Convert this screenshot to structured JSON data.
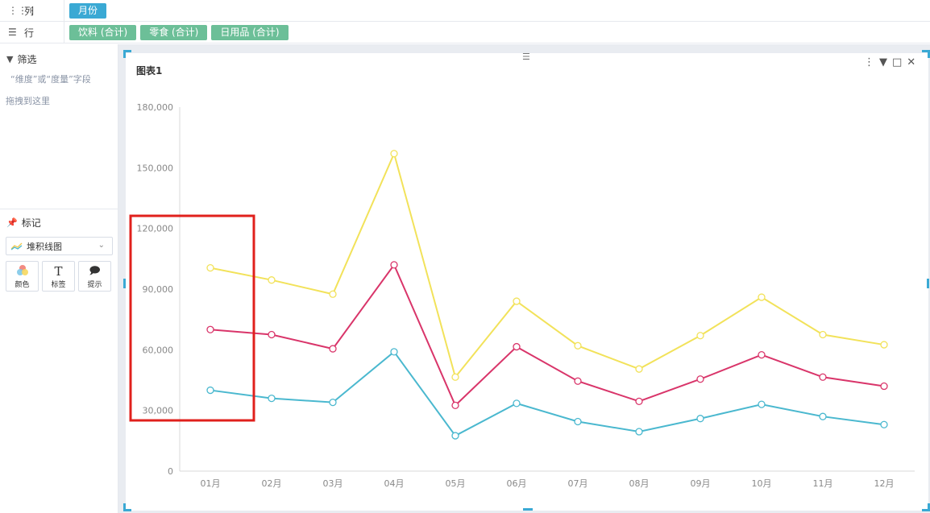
{
  "shelves": {
    "columns": {
      "label": "列",
      "icon": "columns-icon",
      "pills": [
        "月份"
      ]
    },
    "rows": {
      "label": "行",
      "icon": "rows-list-icon",
      "pills": [
        "饮料 (合计)",
        "零食 (合计)",
        "日用品 (合计)"
      ]
    }
  },
  "filter": {
    "title": "筛选",
    "hint_line1": "“维度”或“度量”字段",
    "hint_line2": "拖拽到这里"
  },
  "marks": {
    "title": "标记",
    "chart_type": "堆积线图",
    "buttons": [
      "颜色",
      "标签",
      "提示"
    ]
  },
  "chart": {
    "title": "图表1"
  },
  "colors": {
    "accent_blue": "#3aa9d4",
    "pill_green": "#6cbf98",
    "series_cyan": "#4ab8cf",
    "series_pink": "#d9356a",
    "series_yellow": "#f2e25a",
    "highlight_red": "#e0201c"
  },
  "chart_data": {
    "type": "line",
    "stacked": true,
    "categories": [
      "01月",
      "02月",
      "03月",
      "04月",
      "05月",
      "06月",
      "07月",
      "08月",
      "09月",
      "10月",
      "11月",
      "12月"
    ],
    "series": [
      {
        "name": "饮料 (合计)",
        "cumulative": [
          40000,
          36000,
          34000,
          59000,
          17500,
          33500,
          24500,
          19500,
          26000,
          33000,
          27000,
          23000
        ]
      },
      {
        "name": "零食 (合计)",
        "cumulative": [
          70000,
          67500,
          60500,
          102000,
          32500,
          61500,
          44500,
          34500,
          45500,
          57500,
          46500,
          42000
        ]
      },
      {
        "name": "日用品 (合计)",
        "cumulative": [
          100500,
          94500,
          87500,
          157000,
          46500,
          84000,
          62000,
          50500,
          67000,
          86000,
          67500,
          62500
        ]
      }
    ],
    "yticks": [
      "0",
      "30,000",
      "60,000",
      "90,000",
      "120,000",
      "150,000",
      "180,000"
    ],
    "ylim": [
      0,
      180000
    ],
    "grid": false,
    "legend": "none"
  }
}
